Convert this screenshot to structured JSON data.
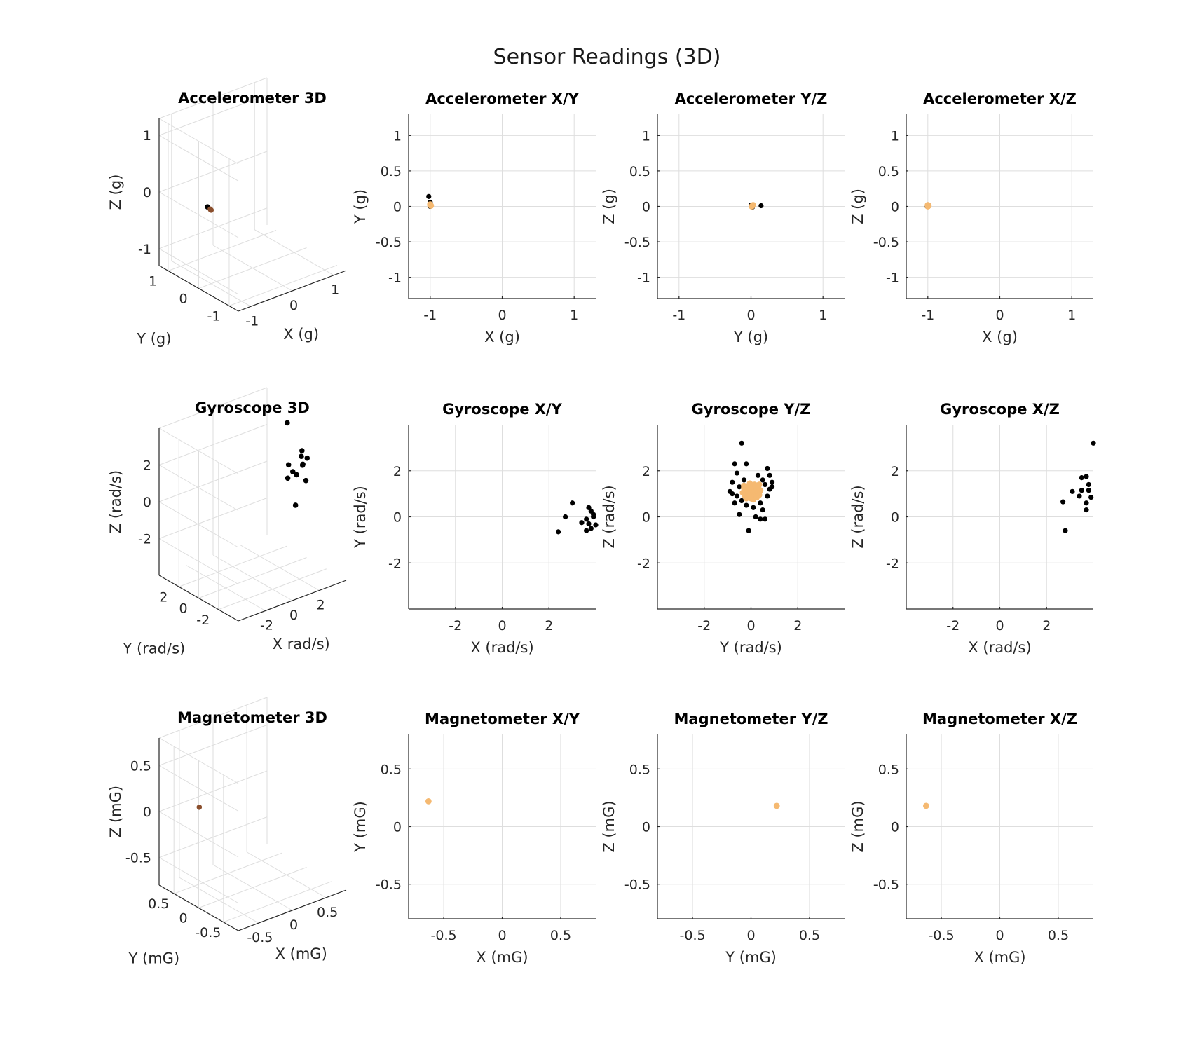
{
  "figure_title": "Sensor Readings (3D)",
  "colors": {
    "raw": "#000000",
    "calibrated": "#f5b971",
    "point3d": "#8a4e2c",
    "grid": "#dedede",
    "axis": "#262626"
  },
  "chart_data": [
    {
      "type": "scatter3d",
      "sensor": "accelerometer",
      "title": "Accelerometer 3D",
      "xlabel": "X (g)",
      "ylabel": "Y (g)",
      "zlabel": "Z (g)",
      "xlim": [
        -1.3,
        1.3
      ],
      "ylim": [
        -1.3,
        1.3
      ],
      "zlim": [
        -1.3,
        1.3
      ],
      "xticks": [
        -1,
        0,
        1
      ],
      "yticks": [
        -1,
        0,
        1
      ],
      "zticks": [
        -1,
        0,
        1
      ],
      "xtick_labels": [
        "-1",
        "0",
        "1"
      ],
      "ytick_labels": [
        "-1",
        "0",
        "1"
      ],
      "ztick_labels": [
        "-1",
        "0",
        "1"
      ],
      "points": [
        [
          -1.0,
          0.12,
          0.02
        ],
        [
          -1.0,
          0.0,
          0.0
        ],
        [
          -1.0,
          0.03,
          0.01
        ],
        [
          -1.0,
          0.02,
          0.0
        ]
      ]
    },
    {
      "type": "scatter",
      "sensor": "accelerometer",
      "title": "Accelerometer X/Y",
      "xlabel": "X (g)",
      "ylabel": "Y (g)",
      "xlim": [
        -1.3,
        1.3
      ],
      "ylim": [
        -1.3,
        1.3
      ],
      "xticks": [
        -1,
        0,
        1
      ],
      "yticks": [
        -1,
        0.5,
        0,
        -0.5,
        1
      ],
      "xtick_labels": [
        "-1",
        "0",
        "1"
      ],
      "ytick_labels": [
        "-1",
        "0.5",
        "0",
        "-0.5",
        "1"
      ],
      "series": [
        {
          "values": [
            [
              -1.02,
              0.14
            ],
            [
              -1.0,
              0.06
            ],
            [
              -0.99,
              0.02
            ],
            [
              -1.0,
              0.0
            ]
          ]
        },
        {
          "values": [
            [
              -1.0,
              0.03
            ],
            [
              -0.99,
              0.01
            ],
            [
              -1.0,
              0.02
            ]
          ]
        }
      ]
    },
    {
      "type": "scatter",
      "sensor": "accelerometer",
      "title": "Accelerometer Y/Z",
      "xlabel": "Y (g)",
      "ylabel": "Z (g)",
      "xlim": [
        -1.3,
        1.3
      ],
      "ylim": [
        -1.3,
        1.3
      ],
      "xticks": [
        -1,
        0,
        1
      ],
      "yticks": [
        -1,
        -0.5,
        0,
        0.5,
        1
      ],
      "xtick_labels": [
        "-1",
        "0",
        "1"
      ],
      "ytick_labels": [
        "-1",
        "-0.5",
        "0",
        "0.5",
        "1"
      ],
      "series": [
        {
          "values": [
            [
              0.0,
              0.02
            ],
            [
              0.03,
              0.01
            ],
            [
              0.14,
              0.01
            ],
            [
              0.02,
              -0.01
            ]
          ]
        },
        {
          "values": [
            [
              0.02,
              0.01
            ],
            [
              0.01,
              0.0
            ],
            [
              0.03,
              0.02
            ]
          ]
        }
      ]
    },
    {
      "type": "scatter",
      "sensor": "accelerometer",
      "title": "Accelerometer X/Z",
      "xlabel": "X (g)",
      "ylabel": "Z (g)",
      "xlim": [
        -1.3,
        1.3
      ],
      "ylim": [
        -1.3,
        1.3
      ],
      "xticks": [
        -1,
        0,
        1
      ],
      "yticks": [
        -1,
        -0.5,
        0,
        0.5,
        1
      ],
      "xtick_labels": [
        "-1",
        "0",
        "1"
      ],
      "ytick_labels": [
        "-1",
        "-0.5",
        "0",
        "0.5",
        "1"
      ],
      "series": [
        {
          "values": [
            [
              -1.0,
              0.01
            ],
            [
              -0.99,
              0.02
            ],
            [
              -1.01,
              0.0
            ]
          ]
        },
        {
          "values": [
            [
              -1.0,
              0.0
            ],
            [
              -0.99,
              0.01
            ],
            [
              -1.0,
              0.02
            ]
          ]
        }
      ]
    },
    {
      "type": "scatter3d",
      "sensor": "gyroscope",
      "title": "Gyroscope 3D",
      "xlabel": "X rad/s)",
      "ylabel": "Y (rad/s)",
      "zlabel": "Z (rad/s)",
      "xlim": [
        -4,
        4
      ],
      "ylim": [
        -4,
        4
      ],
      "zlim": [
        -4,
        4
      ],
      "xticks": [
        -2,
        0,
        2
      ],
      "yticks": [
        -2,
        0,
        2
      ],
      "zticks": [
        -2,
        0,
        2
      ],
      "xtick_labels": [
        "-2",
        "0",
        "2"
      ],
      "ytick_labels": [
        "-2",
        "0",
        "2"
      ],
      "ztick_labels": [
        "-2",
        "0",
        "2"
      ],
      "points": [
        [
          3.3,
          1.0,
          3.2
        ],
        [
          3.8,
          0.2,
          1.8
        ],
        [
          3.6,
          -0.6,
          1.7
        ],
        [
          3.9,
          0.4,
          1.4
        ],
        [
          3.5,
          -0.3,
          1.3
        ],
        [
          3.7,
          0.0,
          1.1
        ],
        [
          3.1,
          0.6,
          1.1
        ],
        [
          2.9,
          -0.1,
          1.0
        ],
        [
          2.6,
          0.0,
          0.7
        ],
        [
          3.4,
          0.2,
          0.6
        ],
        [
          3.8,
          -0.2,
          0.3
        ],
        [
          2.7,
          -0.65,
          -0.6
        ]
      ]
    },
    {
      "type": "scatter",
      "sensor": "gyroscope",
      "title": "Gyroscope X/Y",
      "xlabel": "X (rad/s)",
      "ylabel": "Y (rad/s)",
      "xlim": [
        -4,
        4
      ],
      "ylim": [
        -4,
        4
      ],
      "xticks": [
        -2,
        0,
        2
      ],
      "yticks": [
        -2,
        0,
        2
      ],
      "xtick_labels": [
        "-2",
        "0",
        "2"
      ],
      "ytick_labels": [
        "-2",
        "0",
        "2"
      ],
      "series": [
        {
          "values": [
            [
              3.0,
              0.6
            ],
            [
              3.7,
              0.4
            ],
            [
              3.8,
              0.25
            ],
            [
              3.9,
              0.1
            ],
            [
              3.9,
              0.0
            ],
            [
              2.7,
              0.0
            ],
            [
              3.6,
              -0.1
            ],
            [
              3.4,
              -0.25
            ],
            [
              3.7,
              -0.3
            ],
            [
              4.0,
              -0.35
            ],
            [
              3.8,
              -0.5
            ],
            [
              3.6,
              -0.6
            ],
            [
              2.4,
              -0.65
            ]
          ]
        }
      ]
    },
    {
      "type": "scatter",
      "sensor": "gyroscope",
      "title": "Gyroscope Y/Z",
      "xlabel": "Y (rad/s)",
      "ylabel": "Z (rad/s)",
      "xlim": [
        -4,
        4
      ],
      "ylim": [
        -4,
        4
      ],
      "xticks": [
        -2,
        0,
        2
      ],
      "yticks": [
        -2,
        0,
        2
      ],
      "xtick_labels": [
        "-2",
        "0",
        "2"
      ],
      "ytick_labels": [
        "-2",
        "0",
        "2"
      ],
      "series": [
        {
          "values": [
            [
              -0.4,
              3.2
            ],
            [
              -0.7,
              2.3
            ],
            [
              -0.2,
              2.3
            ],
            [
              0.7,
              2.1
            ],
            [
              -0.6,
              1.9
            ],
            [
              0.8,
              1.8
            ],
            [
              0.3,
              1.8
            ],
            [
              -0.3,
              1.6
            ],
            [
              0.5,
              1.6
            ],
            [
              0.9,
              1.5
            ],
            [
              -0.8,
              1.5
            ],
            [
              0.6,
              1.4
            ],
            [
              -0.5,
              1.3
            ],
            [
              0.8,
              1.2
            ],
            [
              -0.9,
              1.1
            ],
            [
              -0.6,
              0.9
            ],
            [
              0.7,
              0.9
            ],
            [
              -0.4,
              0.7
            ],
            [
              -0.7,
              0.6
            ],
            [
              0.4,
              0.6
            ],
            [
              -0.2,
              0.5
            ],
            [
              0.1,
              0.4
            ],
            [
              0.5,
              0.3
            ],
            [
              -0.5,
              0.1
            ],
            [
              0.2,
              0.0
            ],
            [
              0.4,
              -0.1
            ],
            [
              -0.1,
              -0.6
            ],
            [
              0.6,
              -0.1
            ],
            [
              -0.3,
              1.2
            ],
            [
              0.3,
              1.3
            ],
            [
              0.9,
              1.3
            ],
            [
              -0.8,
              1.0
            ]
          ]
        },
        {
          "values": [
            [
              0.0,
              1.1
            ],
            [
              0.1,
              1.0
            ],
            [
              -0.1,
              1.1
            ],
            [
              0.05,
              1.2
            ],
            [
              0.15,
              1.1
            ],
            [
              -0.05,
              0.95
            ],
            [
              0.1,
              1.25
            ],
            [
              -0.15,
              1.0
            ],
            [
              0.2,
              0.95
            ],
            [
              0.0,
              1.3
            ],
            [
              -0.2,
              1.15
            ],
            [
              0.25,
              1.2
            ],
            [
              0.05,
              0.85
            ],
            [
              -0.1,
              1.35
            ],
            [
              0.3,
              1.05
            ],
            [
              -0.25,
              0.9
            ],
            [
              0.15,
              1.4
            ],
            [
              -0.3,
              1.25
            ],
            [
              0.35,
              0.95
            ],
            [
              0.0,
              0.8
            ],
            [
              0.2,
              1.35
            ],
            [
              -0.2,
              0.8
            ],
            [
              0.3,
              1.3
            ],
            [
              -0.35,
              1.05
            ],
            [
              0.1,
              0.75
            ],
            [
              0.4,
              1.15
            ],
            [
              -0.05,
              1.45
            ],
            [
              0.25,
              0.85
            ],
            [
              -0.3,
              1.35
            ],
            [
              0.35,
              1.4
            ]
          ]
        }
      ]
    },
    {
      "type": "scatter",
      "sensor": "gyroscope",
      "title": "Gyroscope X/Z",
      "xlabel": "X (rad/s)",
      "ylabel": "Z (rad/s)",
      "xlim": [
        -4,
        4
      ],
      "ylim": [
        -4,
        4
      ],
      "xticks": [
        -2,
        0,
        2
      ],
      "yticks": [
        -2,
        0,
        2
      ],
      "xtick_labels": [
        "-2",
        "0",
        "2"
      ],
      "ytick_labels": [
        "-2",
        "0",
        "2"
      ],
      "series": [
        {
          "values": [
            [
              4.0,
              3.2
            ],
            [
              3.7,
              1.75
            ],
            [
              3.5,
              1.7
            ],
            [
              3.8,
              1.4
            ],
            [
              3.5,
              1.15
            ],
            [
              3.8,
              1.15
            ],
            [
              3.1,
              1.1
            ],
            [
              3.4,
              0.9
            ],
            [
              3.9,
              0.85
            ],
            [
              2.7,
              0.65
            ],
            [
              3.7,
              0.6
            ],
            [
              3.7,
              0.3
            ],
            [
              2.8,
              -0.6
            ]
          ]
        }
      ]
    },
    {
      "type": "scatter3d",
      "sensor": "magnetometer",
      "title": "Magnetometer 3D",
      "xlabel": "X (mG)",
      "ylabel": "Y (mG)",
      "zlabel": "Z (mG)",
      "xlim": [
        -0.8,
        0.8
      ],
      "ylim": [
        -0.8,
        0.8
      ],
      "zlim": [
        -0.8,
        0.8
      ],
      "xticks": [
        -0.5,
        0,
        0.5
      ],
      "yticks": [
        -0.5,
        0,
        0.5
      ],
      "zticks": [
        -0.5,
        0,
        0.5
      ],
      "xtick_labels": [
        "-0.5",
        "0",
        "0.5"
      ],
      "ytick_labels": [
        "-0.5",
        "0",
        "0.5"
      ],
      "ztick_labels": [
        "-0.5",
        "0",
        "0.5"
      ],
      "points": [
        [
          -0.63,
          0.22,
          0.18
        ]
      ]
    },
    {
      "type": "scatter",
      "sensor": "magnetometer",
      "title": "Magnetometer X/Y",
      "xlabel": "X (mG)",
      "ylabel": "Y (mG)",
      "xlim": [
        -0.8,
        0.8
      ],
      "ylim": [
        -0.8,
        0.8
      ],
      "xticks": [
        -0.5,
        0,
        0.5
      ],
      "yticks": [
        -0.5,
        0,
        0.5
      ],
      "xtick_labels": [
        "-0.5",
        "0",
        "0.5"
      ],
      "ytick_labels": [
        "-0.5",
        "0",
        "0.5"
      ],
      "series": [
        {
          "values": []
        },
        {
          "values": [
            [
              -0.63,
              0.22
            ]
          ]
        }
      ]
    },
    {
      "type": "scatter",
      "sensor": "magnetometer",
      "title": "Magnetometer Y/Z",
      "xlabel": "Y (mG)",
      "ylabel": "Z (mG)",
      "xlim": [
        -0.8,
        0.8
      ],
      "ylim": [
        -0.8,
        0.8
      ],
      "xticks": [
        -0.5,
        0,
        0.5
      ],
      "yticks": [
        -0.5,
        0,
        0.5
      ],
      "xtick_labels": [
        "-0.5",
        "0",
        "0.5"
      ],
      "ytick_labels": [
        "-0.5",
        "0",
        "0.5"
      ],
      "series": [
        {
          "values": []
        },
        {
          "values": [
            [
              0.22,
              0.18
            ]
          ]
        }
      ]
    },
    {
      "type": "scatter",
      "sensor": "magnetometer",
      "title": "Magnetometer X/Z",
      "xlabel": "X (mG)",
      "ylabel": "Z (mG)",
      "xlim": [
        -0.8,
        0.8
      ],
      "ylim": [
        -0.8,
        0.8
      ],
      "xticks": [
        -0.5,
        0,
        0.5
      ],
      "yticks": [
        -0.5,
        0,
        0.5
      ],
      "xtick_labels": [
        "-0.5",
        "0",
        "0.5"
      ],
      "ytick_labels": [
        "-0.5",
        "0",
        "0.5"
      ],
      "series": [
        {
          "values": []
        },
        {
          "values": [
            [
              -0.63,
              0.18
            ]
          ]
        }
      ]
    }
  ]
}
